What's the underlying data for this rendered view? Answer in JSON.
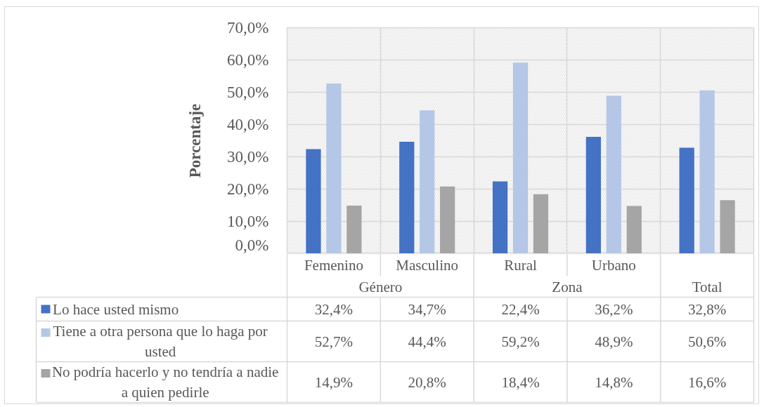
{
  "chart_data": {
    "type": "bar",
    "ylabel": "Porcentaje",
    "categories": [
      "Femenino",
      "Masculino",
      "Rural",
      "Urbano",
      null
    ],
    "annotations": [
      "Género",
      "Zona",
      "Total"
    ],
    "series": [
      {
        "name": "Lo hace usted mismo",
        "color": "#4472c4",
        "values": [
          32.4,
          34.7,
          22.4,
          36.2,
          32.8
        ],
        "value_labels": [
          "32,4%",
          "34,7%",
          "22,4%",
          "36,2%",
          "32,8%"
        ]
      },
      {
        "name": "Tiene a otra persona que lo haga por usted",
        "color": "#b4c7e7",
        "values": [
          52.7,
          44.4,
          59.2,
          48.9,
          50.6
        ],
        "value_labels": [
          "52,7%",
          "44,4%",
          "59,2%",
          "48,9%",
          "50,6%"
        ]
      },
      {
        "name": "No podría hacerlo y no tendría a nadie a quien pedirle",
        "color": "#a5a5a5",
        "values": [
          14.9,
          20.8,
          18.4,
          14.8,
          16.6
        ],
        "value_labels": [
          "14,9%",
          "20,8%",
          "18,4%",
          "14,8%",
          "16,6%"
        ]
      }
    ],
    "ylim": [
      0,
      70
    ],
    "yticks": [
      {
        "value": 0,
        "label": "0,0%"
      },
      {
        "value": 10,
        "label": "10,0%"
      },
      {
        "value": 20,
        "label": "20,0%"
      },
      {
        "value": 30,
        "label": "30,0%"
      },
      {
        "value": 40,
        "label": "40,0%"
      },
      {
        "value": 50,
        "label": "50,0%"
      },
      {
        "value": 60,
        "label": "60,0%"
      },
      {
        "value": 70,
        "label": "70,0%"
      }
    ],
    "grid": true,
    "legend": "bottom"
  }
}
